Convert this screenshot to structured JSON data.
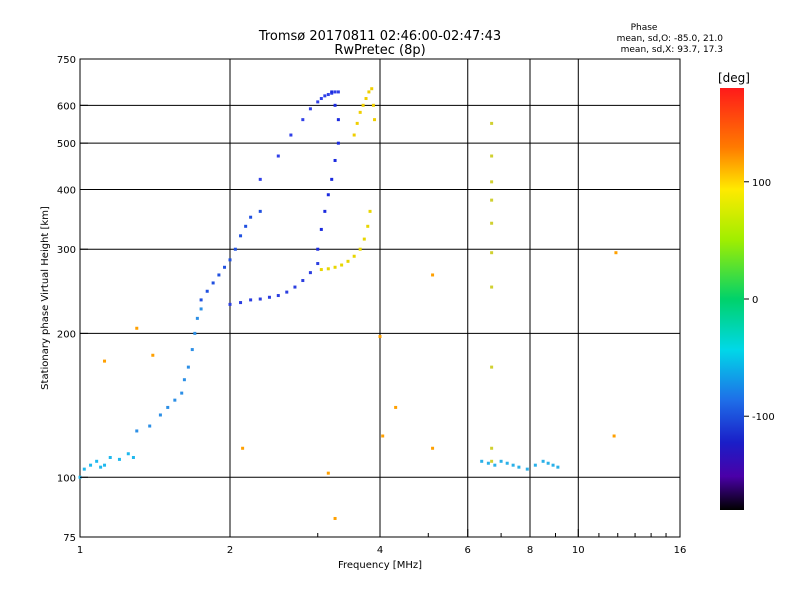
{
  "chart_data": {
    "type": "scatter",
    "title": "Tromsø 20170811 02:46:00-02:47:43",
    "subtitle": "RwPretec (8p)",
    "xlabel": "Frequency [MHz]",
    "ylabel": "Stationary phase Virtual Height [km]",
    "xscale": "log",
    "yscale": "log",
    "xlim": [
      1,
      16
    ],
    "ylim": [
      75,
      750
    ],
    "x_ticks": [
      1,
      2,
      4,
      6,
      8,
      10,
      16
    ],
    "x_minor_ticks": [
      3,
      5,
      7,
      9,
      11,
      12,
      13,
      14,
      15
    ],
    "y_ticks": [
      75,
      100,
      200,
      300,
      400,
      500,
      600,
      750
    ],
    "grid_x": [
      2,
      4,
      6,
      8,
      10
    ],
    "grid_y": [
      100,
      200,
      300,
      400,
      500,
      600
    ],
    "grid": true,
    "colorbar": {
      "label": "[deg]",
      "range": [
        -180,
        180
      ],
      "ticks": [
        100,
        0,
        -100
      ]
    },
    "stats": {
      "heading": "Phase",
      "line1": "mean, sd,O: -85.0, 21.0",
      "line2": "mean, sd,X:  93.7, 17.3"
    },
    "point_groups": [
      {
        "name": "low E-region cluster",
        "x": [
          1.0,
          1.02,
          1.05,
          1.08,
          1.1,
          1.12,
          1.15,
          1.2,
          1.25,
          1.28
        ],
        "y": [
          100,
          104,
          106,
          108,
          105,
          106,
          110,
          109,
          112,
          110
        ],
        "color": "#1fb8ee"
      },
      {
        "name": "E-region to F1 rise",
        "x": [
          1.3,
          1.38,
          1.45,
          1.5,
          1.55,
          1.6,
          1.62,
          1.65,
          1.68,
          1.7,
          1.72,
          1.75
        ],
        "y": [
          125,
          128,
          135,
          140,
          145,
          150,
          160,
          170,
          185,
          200,
          215,
          225
        ],
        "color": "#2c8fe6"
      },
      {
        "name": "F1 ramp",
        "x": [
          1.75,
          1.8,
          1.85,
          1.9,
          1.95,
          2.0,
          2.05,
          2.1,
          2.15,
          2.2,
          2.3
        ],
        "y": [
          235,
          245,
          255,
          265,
          275,
          285,
          300,
          320,
          335,
          350,
          360
        ],
        "color": "#2050e0"
      },
      {
        "name": "F1 trace",
        "x": [
          2.0,
          2.1,
          2.2,
          2.3,
          2.4,
          2.5,
          2.6,
          2.7,
          2.8,
          2.9,
          3.0
        ],
        "y": [
          230,
          232,
          235,
          236,
          238,
          240,
          244,
          250,
          258,
          268,
          280
        ],
        "color": "#2b3ee0"
      },
      {
        "name": "O-mode F2 trace",
        "x": [
          2.3,
          2.5,
          2.65,
          2.8,
          2.9,
          3.0,
          3.05,
          3.1,
          3.15,
          3.2,
          3.25,
          3.3
        ],
        "y": [
          420,
          470,
          520,
          560,
          590,
          610,
          620,
          628,
          632,
          636,
          640,
          640
        ],
        "color": "#3040e8"
      },
      {
        "name": "O-mode F2 cusp",
        "x": [
          3.0,
          3.05,
          3.1,
          3.15,
          3.2,
          3.25,
          3.3,
          3.3,
          3.25,
          3.2
        ],
        "y": [
          300,
          330,
          360,
          390,
          420,
          460,
          500,
          560,
          600,
          640
        ],
        "color": "#1a2adf"
      },
      {
        "name": "X-mode F trace",
        "x": [
          3.05,
          3.15,
          3.25,
          3.35,
          3.45,
          3.55,
          3.65,
          3.72,
          3.78,
          3.82
        ],
        "y": [
          272,
          273,
          275,
          278,
          283,
          290,
          300,
          315,
          335,
          360
        ],
        "color": "#e8d600"
      },
      {
        "name": "X-mode F2 cusp",
        "x": [
          3.55,
          3.6,
          3.65,
          3.7,
          3.75,
          3.8,
          3.85,
          3.88,
          3.9
        ],
        "y": [
          520,
          550,
          580,
          600,
          620,
          640,
          650,
          600,
          560
        ],
        "color": "#f0cf00"
      },
      {
        "name": "scattered points",
        "x": [
          1.12,
          1.3,
          1.4,
          2.12,
          3.15,
          3.25,
          4.05,
          4.3,
          5.1,
          5.1,
          4.0,
          11.8,
          11.9
        ],
        "y": [
          175,
          205,
          180,
          115,
          102,
          82,
          122,
          140,
          115,
          265,
          197,
          122,
          295
        ],
        "color": "#ffa000"
      },
      {
        "name": "vertical column near 6.7 MHz",
        "x": [
          6.7,
          6.7,
          6.7,
          6.7,
          6.7,
          6.7,
          6.7,
          6.7,
          6.7,
          6.7
        ],
        "y": [
          550,
          470,
          415,
          380,
          340,
          295,
          250,
          170,
          115,
          108
        ],
        "color": "#d0d030"
      },
      {
        "name": "high-frequency E cluster",
        "x": [
          6.4,
          6.6,
          6.8,
          7.0,
          7.2,
          7.4,
          7.6,
          7.9,
          8.2,
          8.5,
          8.7,
          8.9,
          9.1
        ],
        "y": [
          108,
          107,
          106,
          108,
          107,
          106,
          105,
          104,
          106,
          108,
          107,
          106,
          105
        ],
        "color": "#2ab0e8"
      }
    ]
  }
}
